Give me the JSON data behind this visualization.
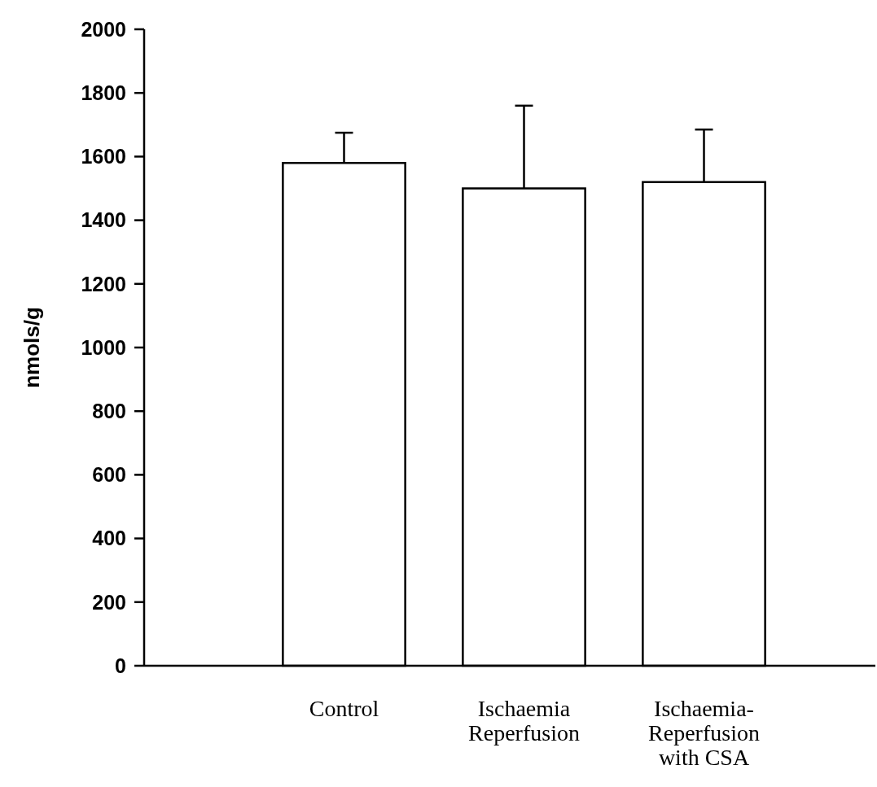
{
  "chart_data": {
    "type": "bar",
    "ylabel": "nmols/g",
    "categories": [
      "Control",
      "Ischaemia Reperfusion",
      "Ischaemia-Reperfusion with CSA"
    ],
    "values": [
      1580,
      1500,
      1520
    ],
    "errors": [
      [
        1580,
        1675
      ],
      [
        1500,
        1760
      ],
      [
        1520,
        1685
      ]
    ],
    "color": "#ffffff",
    "ylim": [
      0,
      2000
    ],
    "yticks": [
      0,
      200,
      400,
      600,
      800,
      1000,
      1200,
      1400,
      1600,
      1800,
      2000
    ],
    "grid": false
  }
}
